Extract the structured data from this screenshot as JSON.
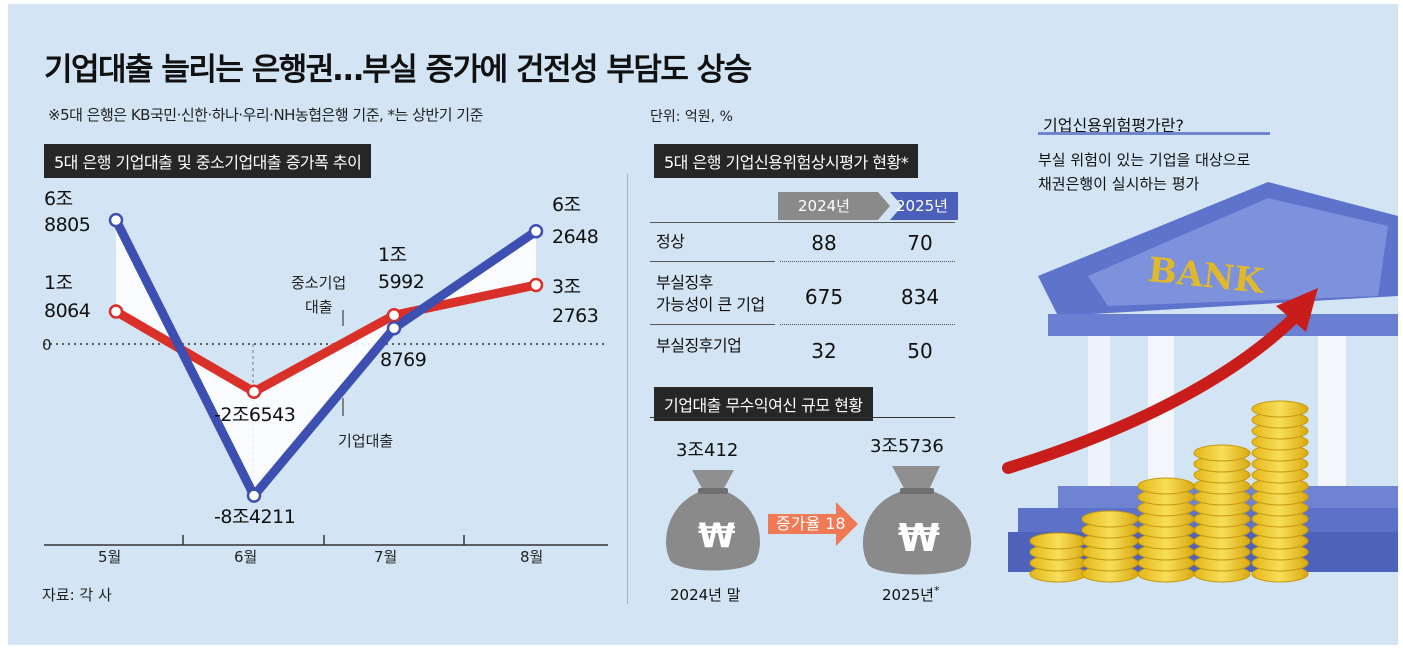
{
  "title": "기업대출 늘리는 은행권…부실 증가에 건전성 부담도 상승",
  "note": "※5대 은행은 KB국민·신한·하나·우리·NH농협은행 기준, *는 상반기 기준",
  "unit": "단위: 억원, %",
  "source": "자료: 각 사",
  "chart_data": [
    {
      "type": "line",
      "title": "5대 은행 기업대출 및 중소기업대출 증가폭 추이",
      "categories": [
        "5월",
        "6월",
        "7월",
        "8월"
      ],
      "zero_label": "0",
      "series": [
        {
          "name": "기업대출",
          "color": "#3d4fb0",
          "values": [
            68805,
            -84211,
            8769,
            62648
          ],
          "point_labels": [
            [
              "6조",
              "8805"
            ],
            [
              "-8조4211"
            ],
            [
              "8769"
            ],
            [
              "6조",
              "2648"
            ]
          ]
        },
        {
          "name": "중소기업 대출",
          "color": "#d9302a",
          "values": [
            18064,
            -26543,
            15992,
            32763
          ],
          "point_labels": [
            [
              "1조",
              "8064"
            ],
            [
              "-2조6543"
            ],
            [
              "1조",
              "5992"
            ],
            [
              "3조",
              "2763"
            ]
          ]
        }
      ],
      "series_labels": {
        "sme": [
          "중소기업",
          "대출"
        ],
        "corp": "기업대출"
      }
    },
    {
      "type": "table",
      "title": "5대 은행 기업신용위험상시평가 현황*",
      "columns": [
        "2024년",
        "2025년"
      ],
      "rows": [
        {
          "label": [
            "정상"
          ],
          "values": [
            "88",
            "70"
          ]
        },
        {
          "label": [
            "부실징후",
            "가능성이 큰 기업"
          ],
          "values": [
            "675",
            "834"
          ]
        },
        {
          "label": [
            "부실징후기업"
          ],
          "values": [
            "32",
            "50"
          ]
        }
      ]
    },
    {
      "type": "bar",
      "title": "기업대출 무수익여신 규모 현황",
      "categories": [
        "2024년 말",
        "2025년"
      ],
      "category_suffix": [
        "",
        "*"
      ],
      "values": [
        30412,
        35736
      ],
      "value_labels": [
        "3조412",
        "3조5736"
      ],
      "growth_label": "증가율 18",
      "icon_glyph": "₩"
    }
  ],
  "info": {
    "title": "기업신용위험평가란?",
    "desc": [
      "부실 위험이 있는 기업을 대상으로",
      "채권은행이 실시하는 평가"
    ],
    "bank_sign": "BANK"
  },
  "colors": {
    "background": "#d3e5f4",
    "corp": "#3d4fb0",
    "sme": "#d9302a",
    "accent": "#5a6fc0"
  }
}
